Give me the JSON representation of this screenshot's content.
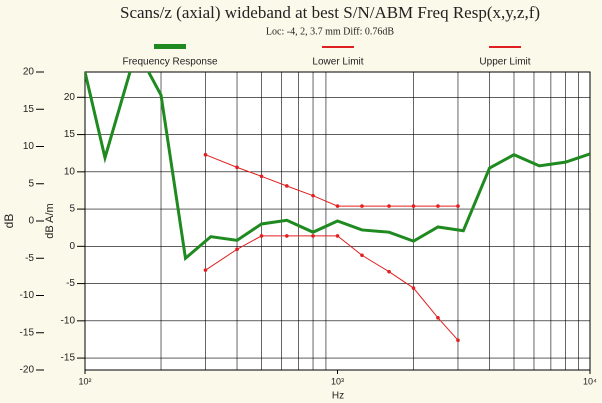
{
  "chart_data": {
    "type": "line",
    "title": "Scans/z (axial) wideband at best S/N/ABM Freq Resp(x,y,z,f)",
    "subtitle": "Loc: -4, 2, 3.7 mm Diff: 0.76dB",
    "x_label": "Hz",
    "y_label": "dB",
    "y2_label": "dB A/m",
    "xscale": "log",
    "xlim": [
      100,
      10000
    ],
    "xticks": [
      {
        "value": 100,
        "label": "10²"
      },
      {
        "value": 1000,
        "label": "10³"
      },
      {
        "value": 10000,
        "label": "10⁴"
      }
    ],
    "xminorticks": [
      200,
      300,
      400,
      500,
      600,
      700,
      800,
      900,
      2000,
      3000,
      4000,
      5000,
      6000,
      7000,
      8000,
      9000
    ],
    "ylim": [
      -20,
      20
    ],
    "yticks": [
      -20,
      -15,
      -10,
      -5,
      0,
      5,
      10,
      15,
      20
    ],
    "y2lim": [
      -16.6,
      23.4
    ],
    "y2ticks": [
      -15,
      -10,
      -5,
      0,
      5,
      10,
      15,
      20
    ],
    "grid": true,
    "legend": "top",
    "series": [
      {
        "name": "Frequency Response",
        "color": "#1f8a1f",
        "x": [
          100,
          120,
          160,
          200,
          250,
          315,
          400,
          500,
          630,
          800,
          1000,
          1250,
          1600,
          2000,
          2500,
          3150,
          4000,
          5000,
          6300,
          8000,
          10000
        ],
        "values": [
          20,
          8.5,
          23,
          16.9,
          -5,
          -2.1,
          -2.6,
          -0.4,
          0.1,
          -1.5,
          0,
          -1.2,
          -1.5,
          -2.7,
          -0.8,
          -1.3,
          7.1,
          8.9,
          7.4,
          7.9,
          9.0
        ]
      },
      {
        "name": "Lower Limit",
        "color": "#e02020",
        "x": [
          300,
          400,
          500,
          630,
          800,
          1000,
          1250,
          1600,
          2000,
          2500,
          3000
        ],
        "values": [
          -6.6,
          -3.8,
          -2.0,
          -2.0,
          -2.0,
          -2.0,
          -4.6,
          -6.8,
          -9.0,
          -13.0,
          -16.0
        ]
      },
      {
        "name": "Upper Limit",
        "color": "#e02020",
        "x": [
          300,
          400,
          500,
          630,
          800,
          1000,
          1250,
          1600,
          2000,
          2500,
          3000
        ],
        "values": [
          8.9,
          7.2,
          6.0,
          4.7,
          3.4,
          2.0,
          2.0,
          2.0,
          2.0,
          2.0,
          2.0
        ]
      }
    ]
  }
}
